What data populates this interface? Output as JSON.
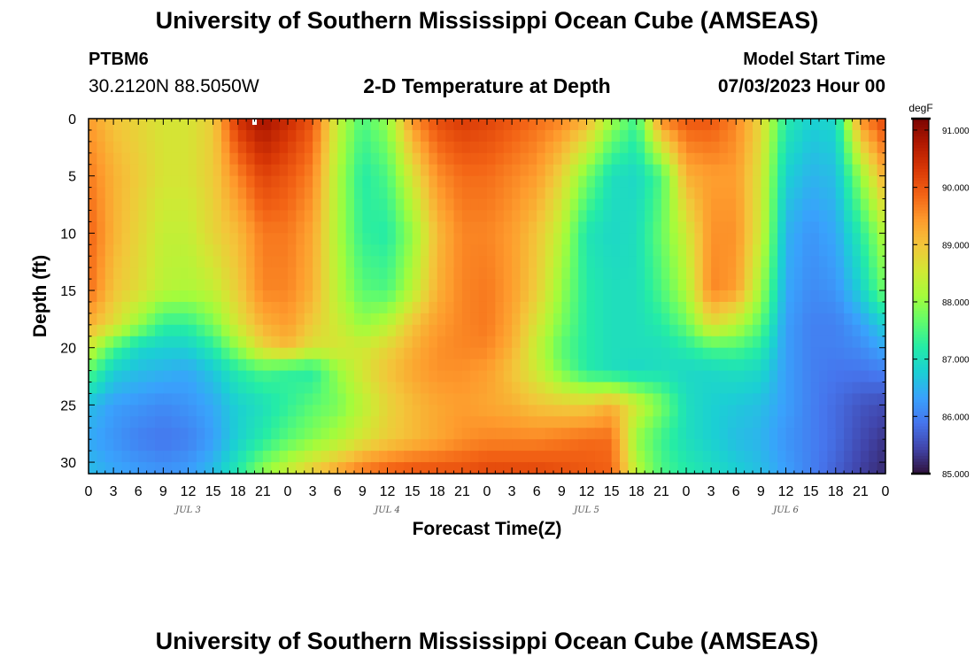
{
  "header": {
    "title": "University of Southern Mississippi Ocean Cube (AMSEAS)",
    "station_id": "PTBM6",
    "coordinates": "30.2120N  88.5050W",
    "subtitle": "2-D Temperature at Depth",
    "model_start_label": "Model Start Time",
    "model_start_value": "07/03/2023 Hour 00"
  },
  "footer": {
    "repeated_title": "University of Southern Mississippi Ocean Cube (AMSEAS)"
  },
  "chart_data": {
    "type": "heatmap",
    "title": "2-D Temperature at Depth",
    "xlabel": "Forecast Time(Z)",
    "ylabel": "Depth (ft)",
    "x_unit": "forecast hour from 07/03/2023 00Z",
    "xlim": [
      0,
      96
    ],
    "ylim": [
      0,
      31
    ],
    "y_inverted": true,
    "x_tick_labels": [
      "0",
      "3",
      "6",
      "9",
      "12",
      "15",
      "18",
      "21",
      "0",
      "3",
      "6",
      "9",
      "12",
      "15",
      "18",
      "21",
      "0",
      "3",
      "6",
      "9",
      "12",
      "15",
      "18",
      "21",
      "0",
      "3",
      "6",
      "9",
      "12",
      "15",
      "18",
      "21",
      "0"
    ],
    "y_tick_labels": [
      "0",
      "5",
      "10",
      "15",
      "20",
      "25",
      "30"
    ],
    "day_labels": [
      "JUL 3",
      "JUL 4",
      "JUL 5",
      "JUL 6"
    ],
    "colorbar": {
      "label": "degF",
      "min": 85.0,
      "max": 91.2,
      "tick_labels": [
        "91.000",
        "90.000",
        "89.000",
        "88.000",
        "87.000",
        "86.000",
        "85.000"
      ],
      "colormap": [
        "#30123b",
        "#4145ab",
        "#4675ed",
        "#39a2fc",
        "#1bcfd4",
        "#24eca6",
        "#61fc6c",
        "#a4fc3b",
        "#d1e834",
        "#f3c63a",
        "#fe9b2d",
        "#f36315",
        "#d93806",
        "#b11901",
        "#7a0402"
      ]
    },
    "depths_ft": [
      0,
      5,
      10,
      15,
      18,
      20,
      22,
      25,
      28,
      31
    ],
    "hours": [
      0,
      3,
      6,
      9,
      12,
      15,
      18,
      21,
      24,
      27,
      30,
      33,
      36,
      39,
      42,
      45,
      48,
      51,
      54,
      57,
      60,
      63,
      66,
      69,
      72,
      75,
      78,
      81,
      84,
      87,
      90,
      93,
      96
    ],
    "temperature_degF": [
      [
        89.4,
        89.0,
        88.8,
        88.6,
        88.6,
        88.9,
        90.4,
        90.9,
        90.5,
        90.0,
        88.4,
        87.5,
        88.0,
        89.5,
        90.1,
        90.3,
        90.2,
        90.0,
        89.8,
        89.6,
        89.2,
        88.1,
        87.4,
        89.6,
        90.0,
        90.0,
        89.6,
        88.8,
        87.2,
        86.8,
        86.9,
        89.5,
        90.2
      ],
      [
        89.7,
        89.2,
        88.9,
        88.6,
        88.6,
        88.9,
        89.6,
        90.2,
        90.0,
        89.6,
        88.2,
        87.2,
        87.5,
        88.6,
        89.5,
        89.8,
        89.8,
        89.6,
        89.4,
        88.8,
        87.8,
        87.0,
        86.9,
        87.5,
        89.2,
        89.4,
        89.4,
        88.6,
        86.8,
        86.5,
        86.6,
        88.0,
        89.3
      ],
      [
        89.9,
        89.2,
        88.8,
        88.4,
        88.4,
        88.8,
        89.1,
        89.7,
        89.7,
        89.3,
        88.2,
        87.3,
        87.2,
        88.0,
        89.1,
        89.6,
        89.6,
        89.4,
        89.0,
        88.3,
        87.1,
        86.9,
        87.0,
        87.7,
        88.5,
        89.5,
        89.5,
        88.5,
        86.5,
        86.2,
        86.4,
        87.2,
        88.3
      ],
      [
        89.8,
        89.0,
        88.7,
        88.3,
        88.2,
        88.4,
        88.9,
        89.6,
        89.6,
        89.2,
        88.3,
        87.6,
        87.5,
        88.3,
        89.2,
        89.6,
        89.7,
        89.4,
        88.9,
        88.0,
        87.2,
        87.0,
        87.0,
        87.5,
        88.2,
        89.6,
        89.4,
        88.1,
        86.4,
        86.1,
        86.2,
        86.8,
        87.8
      ],
      [
        89.2,
        88.7,
        88.0,
        87.3,
        87.3,
        87.8,
        88.6,
        89.2,
        89.4,
        88.9,
        88.5,
        88.0,
        88.3,
        89.0,
        89.4,
        89.6,
        89.7,
        89.3,
        88.6,
        87.8,
        87.2,
        87.0,
        87.0,
        87.2,
        87.7,
        88.7,
        88.3,
        87.6,
        86.3,
        86.0,
        86.0,
        86.3,
        86.8
      ],
      [
        88.5,
        87.5,
        86.9,
        86.8,
        86.8,
        87.2,
        88.0,
        88.8,
        89.1,
        88.6,
        88.6,
        88.5,
        88.8,
        89.2,
        89.5,
        89.6,
        89.6,
        89.2,
        88.4,
        87.6,
        87.2,
        87.0,
        87.0,
        87.0,
        87.2,
        87.5,
        87.5,
        87.2,
        86.3,
        86.0,
        86.0,
        86.1,
        86.4
      ],
      [
        87.6,
        86.8,
        86.6,
        86.5,
        86.4,
        86.7,
        87.2,
        87.5,
        87.3,
        87.2,
        88.0,
        88.6,
        89.0,
        89.3,
        89.5,
        89.5,
        89.4,
        89.0,
        88.5,
        87.8,
        87.2,
        87.0,
        86.9,
        87.0,
        86.9,
        86.9,
        87.0,
        86.9,
        86.3,
        86.0,
        85.9,
        85.9,
        86.0
      ],
      [
        86.6,
        86.3,
        86.2,
        86.1,
        86.2,
        86.4,
        86.8,
        87.0,
        87.3,
        87.6,
        87.8,
        88.3,
        88.8,
        89.1,
        89.3,
        89.4,
        89.3,
        89.2,
        89.0,
        88.9,
        88.9,
        89.2,
        88.5,
        87.8,
        87.0,
        86.8,
        86.7,
        86.6,
        86.3,
        86.0,
        85.8,
        85.6,
        85.5
      ],
      [
        86.4,
        86.2,
        86.0,
        85.9,
        86.0,
        86.3,
        86.8,
        87.2,
        87.6,
        87.9,
        88.2,
        88.6,
        88.9,
        89.1,
        89.3,
        89.5,
        89.6,
        89.6,
        89.6,
        89.7,
        89.8,
        89.8,
        88.0,
        87.4,
        87.0,
        86.8,
        86.6,
        86.5,
        86.2,
        86.0,
        85.8,
        85.5,
        85.3
      ],
      [
        86.6,
        86.4,
        86.3,
        86.2,
        86.3,
        86.6,
        87.2,
        88.0,
        88.5,
        89.0,
        89.4,
        89.8,
        90.0,
        90.1,
        90.1,
        90.1,
        90.2,
        90.2,
        90.2,
        90.1,
        90.0,
        89.9,
        88.3,
        87.5,
        87.2,
        87.0,
        86.8,
        86.6,
        86.3,
        86.0,
        85.7,
        85.4,
        85.2
      ]
    ],
    "missing_cell_marker": {
      "hour": 20,
      "depth_ft": 0
    }
  }
}
